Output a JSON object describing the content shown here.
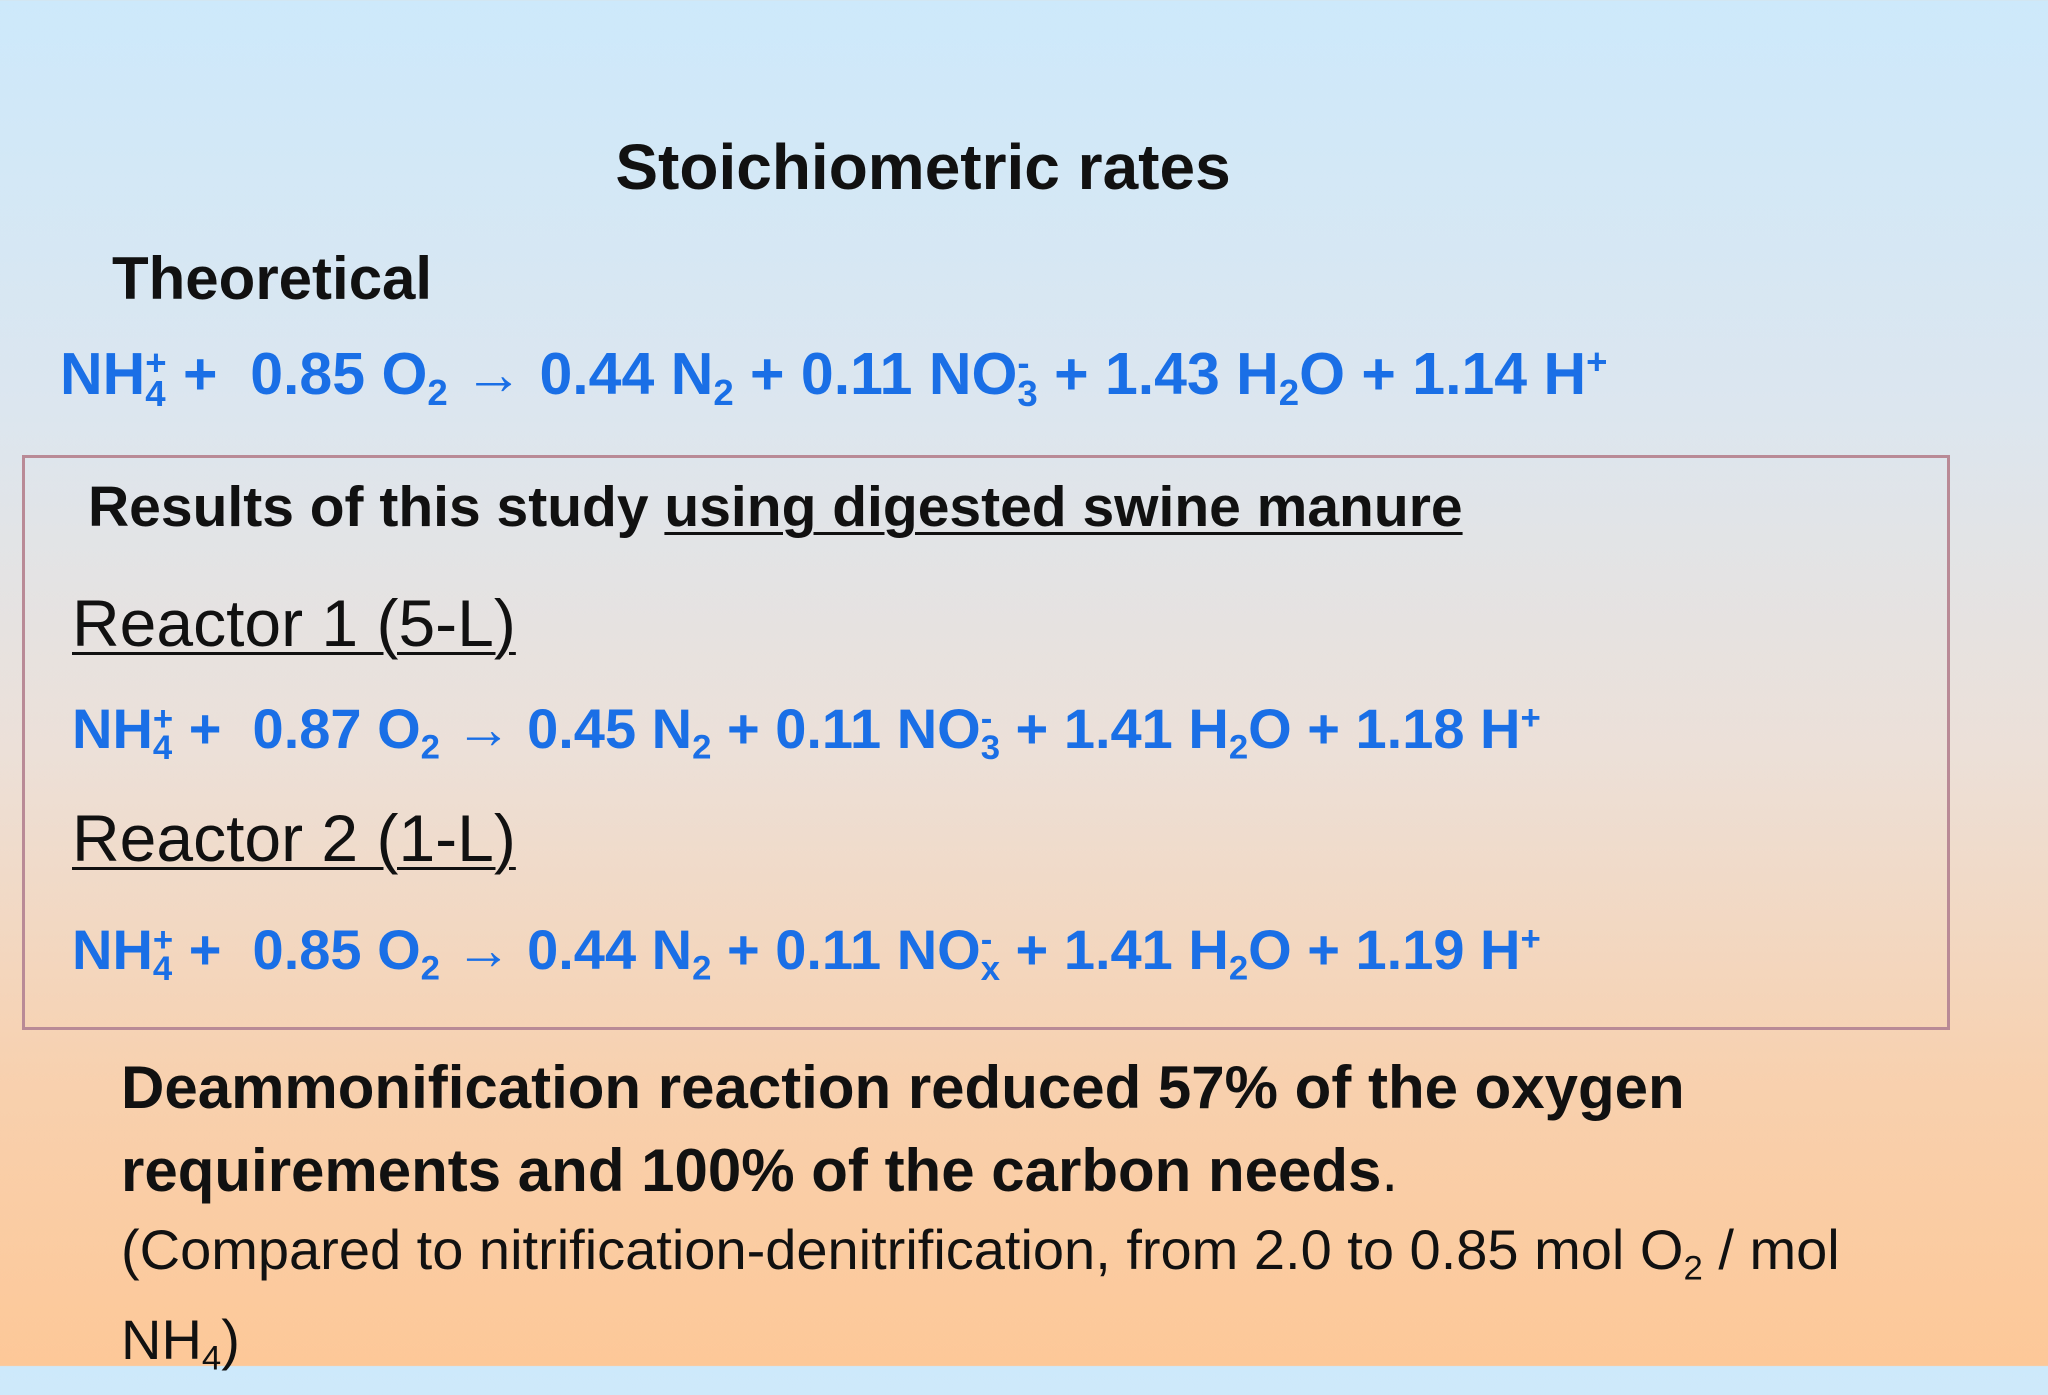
{
  "title": "Stoichiometric rates",
  "theoretical": {
    "heading": "Theoretical",
    "equation": [
      {
        "base": "NH",
        "sub": "4",
        "sup": "+"
      },
      {
        "base": " +  0.85 O",
        "sub": "2"
      },
      {
        "base": " → 0.44 N",
        "sub": "2"
      },
      {
        "base": " + 0.11 NO",
        "sub": "3",
        "sup": "-"
      },
      {
        "base": " + 1.43 H",
        "sub": "2"
      },
      {
        "base": "O + 1.14 H",
        "sup": "+"
      }
    ]
  },
  "results": {
    "heading": "Results of this study ",
    "heading_underlined": "using digested swine manure",
    "reactors": [
      {
        "label": "Reactor 1 (5-L)",
        "equation": [
          {
            "base": "NH",
            "sub": "4",
            "sup": "+"
          },
          {
            "base": " +  0.87 O",
            "sub": "2"
          },
          {
            "base": " → 0.45 N",
            "sub": "2"
          },
          {
            "base": " + 0.11 NO",
            "sub": "3",
            "sup": "-"
          },
          {
            "base": " + 1.41 H",
            "sub": "2"
          },
          {
            "base": "O + 1.18 H",
            "sup": "+"
          }
        ]
      },
      {
        "label": "Reactor 2 (1-L)",
        "equation": [
          {
            "base": "NH",
            "sub": "4",
            "sup": "+"
          },
          {
            "base": " +  0.85 O",
            "sub": "2"
          },
          {
            "base": " → 0.44 N",
            "sub": "2"
          },
          {
            "base": " + 0.11 NO",
            "sub": "x",
            "sup": "-"
          },
          {
            "base": " + 1.41 H",
            "sub": "2"
          },
          {
            "base": "O + 1.19 H",
            "sup": "+"
          }
        ]
      }
    ]
  },
  "conclusion": {
    "statement": "Deammonification reaction reduced 57% of the oxygen requirements and 100% of the carbon needs",
    "period": ".",
    "note": [
      {
        "base": "(Compared to nitrification-denitrification, from 2.0 to 0.85 mol O",
        "sub": "2"
      },
      {
        "base": " / mol NH",
        "sub": "4"
      },
      {
        "base": ")"
      }
    ]
  }
}
